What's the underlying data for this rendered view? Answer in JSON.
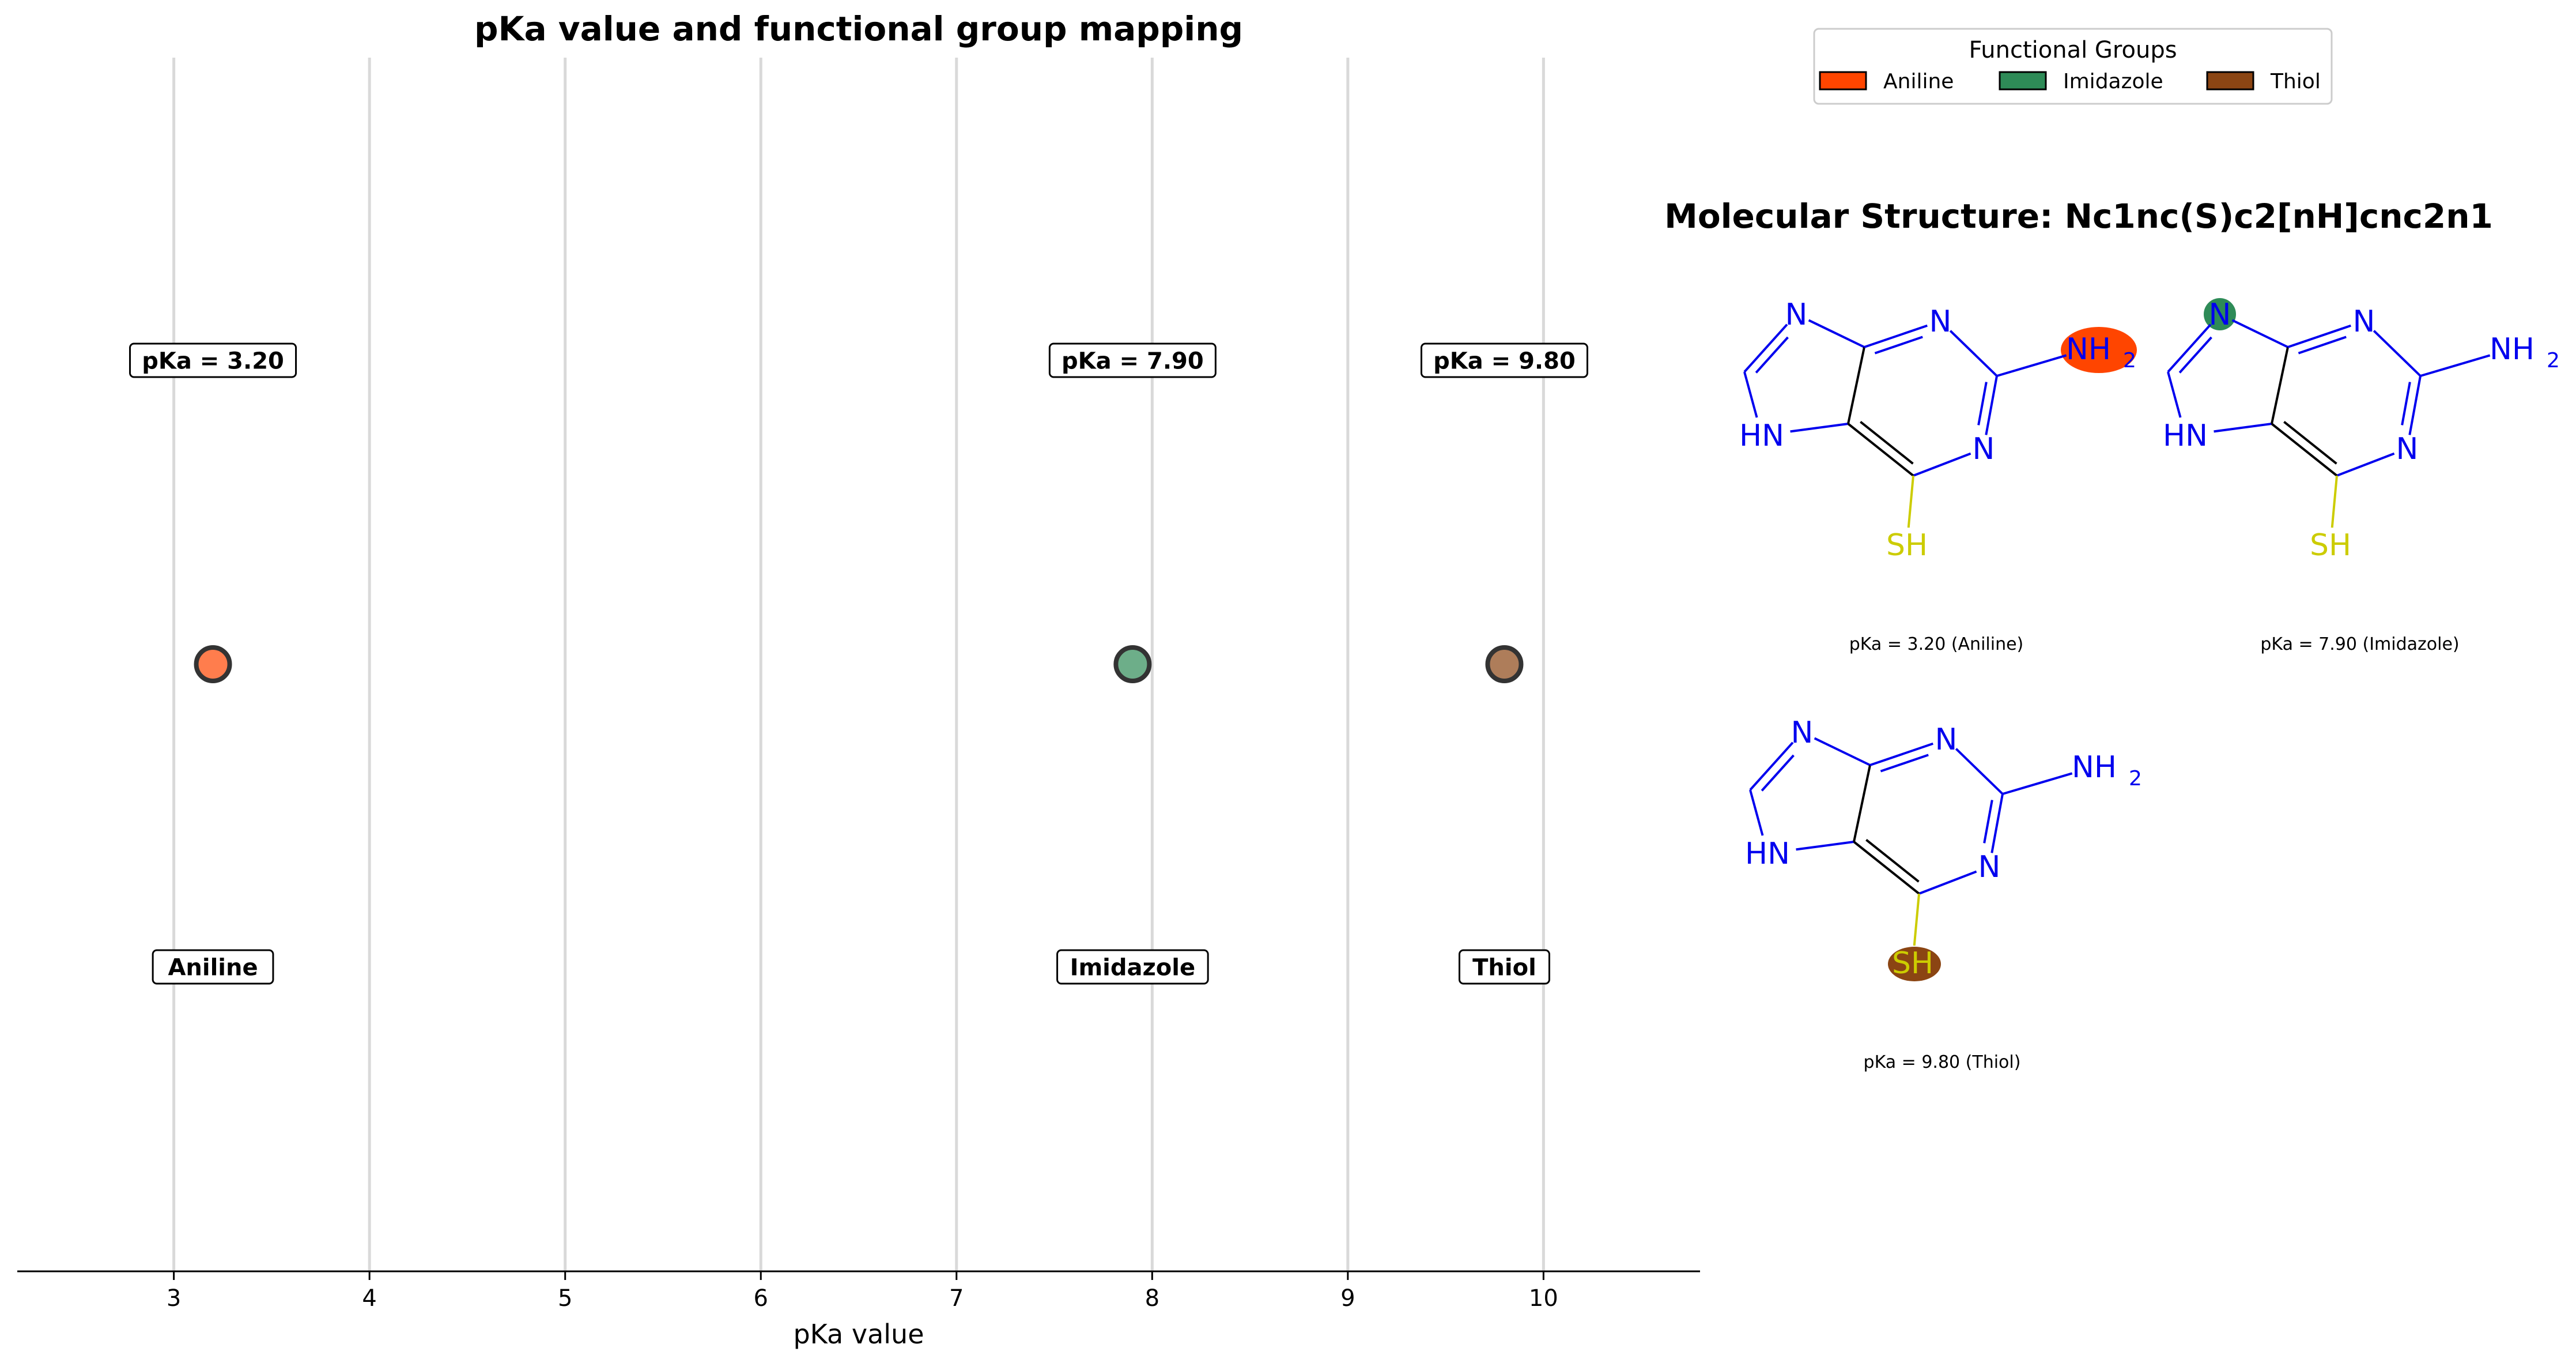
{
  "chart_data": {
    "type": "scatter",
    "title": "pKa value and functional group mapping",
    "xlabel": "pKa value",
    "ylabel": "",
    "xlim": [
      2.2,
      10.8
    ],
    "xticks": [
      3,
      4,
      5,
      6,
      7,
      8,
      9,
      10
    ],
    "grid": "vertical",
    "points": [
      {
        "group": "Aniline",
        "pKa": 3.2,
        "pka_label": "pKa = 3.20",
        "color": "#FF4500"
      },
      {
        "group": "Imidazole",
        "pKa": 7.9,
        "pka_label": "pKa = 7.90",
        "color": "#2E8B57"
      },
      {
        "group": "Thiol",
        "pKa": 9.8,
        "pka_label": "pKa = 9.80",
        "color": "#8B4513"
      }
    ],
    "legend": {
      "title": "Functional Groups",
      "placement": "top-right",
      "entries": [
        {
          "label": "Aniline",
          "color": "#FF4500"
        },
        {
          "label": "Imidazole",
          "color": "#2E8B57"
        },
        {
          "label": "Thiol",
          "color": "#8B4513"
        }
      ]
    }
  },
  "molecules": {
    "title": "Molecular Structure: Nc1nc(S)c2[nH]cnc2n1",
    "panels": [
      {
        "caption": "pKa = 3.20 (Aniline)",
        "highlight": "NH2",
        "highlight_color": "#FF4500"
      },
      {
        "caption": "pKa = 7.90 (Imidazole)",
        "highlight": "N",
        "highlight_color": "#2E8B57"
      },
      {
        "caption": "pKa = 9.80 (Thiol)",
        "highlight": "SH",
        "highlight_color": "#8B4513"
      }
    ],
    "atoms": {
      "n": "N",
      "hn": "HN",
      "nh": "NH",
      "sub2": "2",
      "sh": "SH"
    }
  }
}
